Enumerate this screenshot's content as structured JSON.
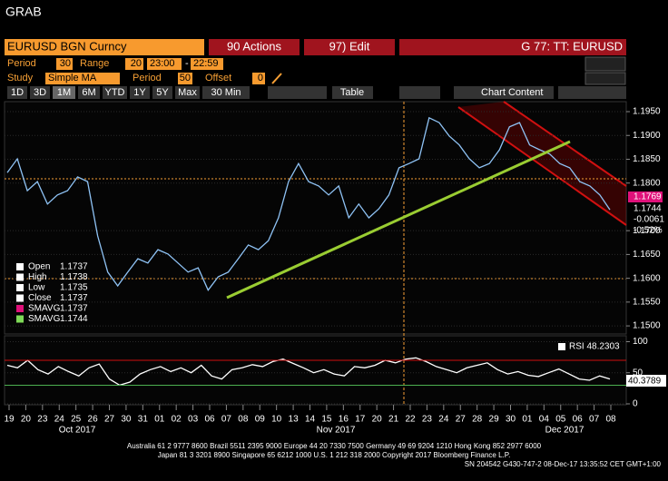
{
  "title": "GRAB",
  "toolbar": {
    "security": "EURUSD BGN Curncy",
    "actions": "90 Actions",
    "edit": "97) Edit",
    "page": "G 77: TT: EURUSD"
  },
  "settings": {
    "period_label": "Period",
    "period": "30",
    "range_label": "Range",
    "range": "20",
    "start": "23:00",
    "dash": "-",
    "end": "22:59",
    "study_label": "Study",
    "study": "Simple MA",
    "study_period_label": "Period",
    "study_period": "50",
    "offset_label": "Offset",
    "offset": "0"
  },
  "buttons": [
    "1D",
    "3D",
    "1M",
    "6M",
    "YTD",
    "1Y",
    "5Y",
    "Max",
    "30 Min"
  ],
  "table_button": "Table",
  "content_button": "Chart Content",
  "legend": [
    {
      "label": "Open",
      "value": "1.1737"
    },
    {
      "label": "High",
      "value": "1.1738"
    },
    {
      "label": "Low",
      "value": "1.1735"
    },
    {
      "label": "Close",
      "value": "1.1737"
    },
    {
      "label": "SMAVG",
      "value": "1.1737"
    },
    {
      "label": "SMAVG",
      "value": "1.1744"
    }
  ],
  "price_tags": [
    "1.1769",
    "1.1744",
    "-0.0061",
    "-0.52%"
  ],
  "x_axis": {
    "days": [
      "19",
      "20",
      "23",
      "24",
      "25",
      "26",
      "27",
      "30",
      "31",
      "01",
      "02",
      "03",
      "06",
      "07",
      "08",
      "09",
      "10",
      "13",
      "14",
      "15",
      "16",
      "17",
      "20",
      "21",
      "22",
      "23",
      "24",
      "27",
      "28",
      "29",
      "30",
      "01",
      "04",
      "05",
      "06",
      "07",
      "08"
    ],
    "months": [
      "Oct 2017",
      "Nov 2017",
      "Dec 2017"
    ]
  },
  "chart_data": [
    {
      "type": "line",
      "color": "#8fc3f5",
      "values": [
        1.1822,
        1.1851,
        1.1784,
        1.1803,
        1.1756,
        1.1775,
        1.1784,
        1.1813,
        1.1803,
        1.1689,
        1.1613,
        1.1584,
        1.1613,
        1.1641,
        1.1632,
        1.166,
        1.1651,
        1.1632,
        1.1613,
        1.1622,
        1.1575,
        1.1603,
        1.1613,
        1.1641,
        1.167,
        1.166,
        1.1679,
        1.1727,
        1.1803,
        1.1841,
        1.1803,
        1.1794,
        1.1775,
        1.1794,
        1.1727,
        1.1756,
        1.1727,
        1.1746,
        1.1775,
        1.1832,
        1.1841,
        1.1851,
        1.1937,
        1.1927,
        1.1899,
        1.188,
        1.1851,
        1.1832,
        1.1841,
        1.187,
        1.1918,
        1.1927,
        1.188,
        1.187,
        1.1861,
        1.1841,
        1.1832,
        1.1803,
        1.1794,
        1.1775,
        1.1744
      ],
      "ylim": [
        1.1483,
        1.1971
      ],
      "yticks": [
        {
          "value": 1.195,
          "label": "1.1950"
        },
        {
          "value": 1.19,
          "label": "1.1900"
        },
        {
          "value": 1.185,
          "label": "1.1850"
        },
        {
          "value": 1.18,
          "label": "1.1800"
        },
        {
          "value": 1.17,
          "label": "1.1700"
        },
        {
          "value": 1.165,
          "label": "1.1650"
        },
        {
          "value": 1.16,
          "label": "1.1600"
        },
        {
          "value": 1.155,
          "label": "1.1550"
        },
        {
          "value": 1.15,
          "label": "1.1500"
        }
      ]
    },
    {
      "type": "line",
      "color": "#ffffff",
      "legend": "RSI 48.2303",
      "last_value_label": "40.3789",
      "values": [
        62,
        58,
        70,
        55,
        48,
        60,
        52,
        45,
        58,
        64,
        40,
        30,
        35,
        48,
        55,
        60,
        52,
        58,
        50,
        62,
        45,
        40,
        55,
        58,
        63,
        60,
        68,
        72,
        65,
        58,
        50,
        55,
        48,
        45,
        60,
        58,
        62,
        70,
        66,
        72,
        74,
        68,
        60,
        55,
        50,
        58,
        62,
        66,
        55,
        48,
        52,
        46,
        44,
        50,
        56,
        48,
        40,
        38,
        45,
        40
      ],
      "ylim": [
        0,
        108
      ],
      "yticks": [
        0,
        50,
        100
      ],
      "overbought": 70,
      "oversold": 30
    }
  ]
}
